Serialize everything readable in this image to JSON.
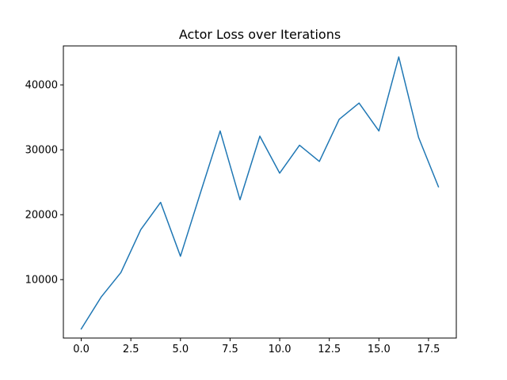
{
  "chart_data": {
    "type": "line",
    "title": "Actor Loss over Iterations",
    "xlabel": "",
    "ylabel": "",
    "xlim": [
      -0.9,
      18.9
    ],
    "ylim": [
      1000,
      46000
    ],
    "x_ticks": [
      0.0,
      2.5,
      5.0,
      7.5,
      10.0,
      12.5,
      15.0,
      17.5
    ],
    "x_tick_labels": [
      "0.0",
      "2.5",
      "5.0",
      "7.5",
      "10.0",
      "12.5",
      "15.0",
      "17.5"
    ],
    "y_ticks": [
      10000,
      20000,
      30000,
      40000
    ],
    "y_tick_labels": [
      "10000",
      "20000",
      "30000",
      "40000"
    ],
    "grid": false,
    "series": [
      {
        "color": "#1f77b4",
        "x": [
          0,
          1,
          2,
          3,
          4,
          5,
          6,
          7,
          8,
          9,
          10,
          11,
          12,
          13,
          14,
          15,
          16,
          17,
          18
        ],
        "y": [
          2400,
          7300,
          11100,
          17700,
          21900,
          13600,
          23300,
          32900,
          22300,
          32100,
          26400,
          30700,
          28200,
          34700,
          37200,
          32900,
          44300,
          31900,
          24300
        ]
      }
    ]
  }
}
